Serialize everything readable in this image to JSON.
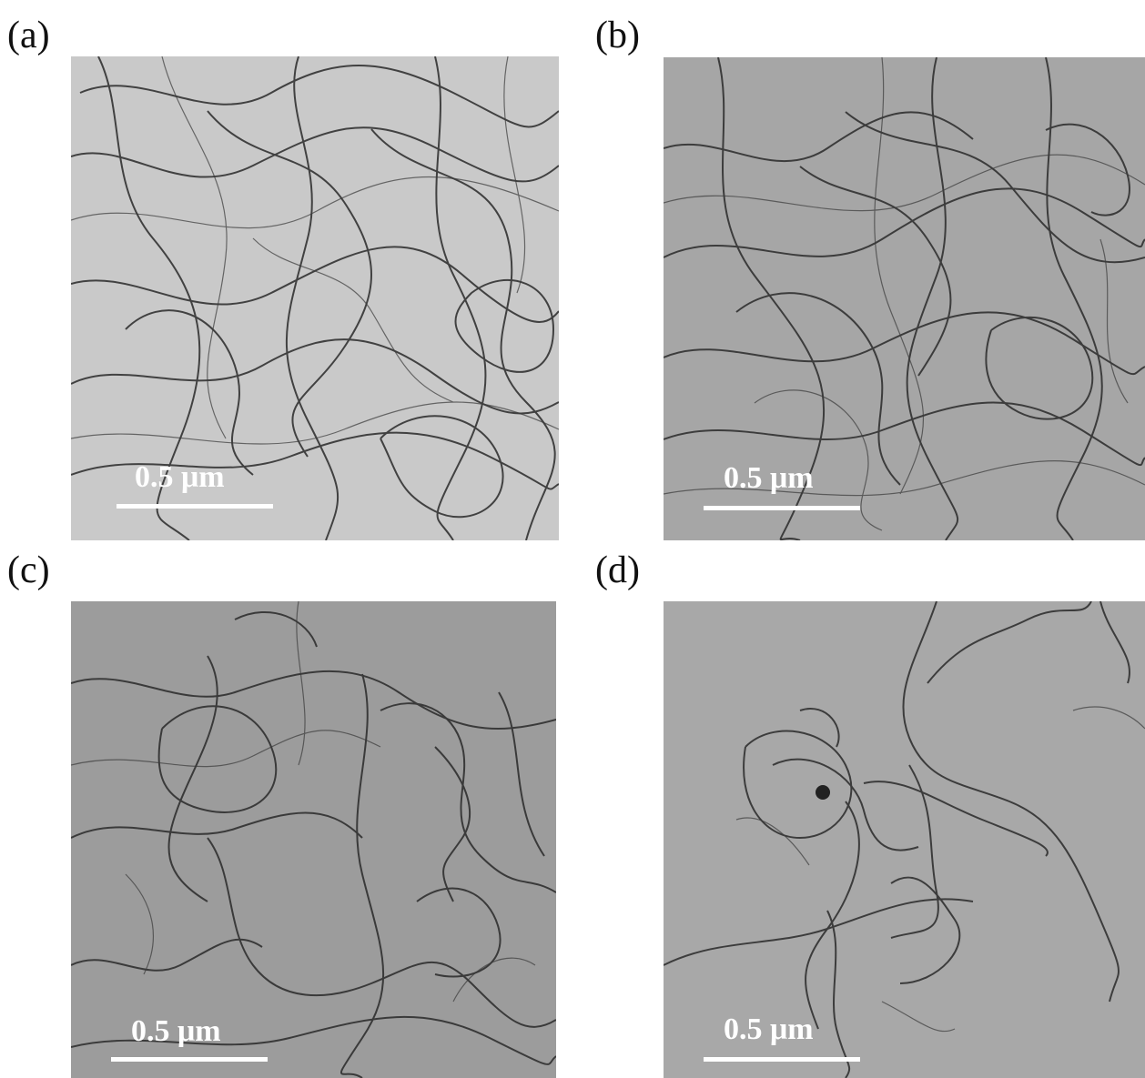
{
  "panels": [
    {
      "label": "(a)",
      "scale": "0.5 μm",
      "background": "#c9c9c9"
    },
    {
      "label": "(b)",
      "scale": "0.5 μm",
      "background": "#a6a6a6"
    },
    {
      "label": "(c)",
      "scale": "0.5 μm",
      "background": "#9c9c9c"
    },
    {
      "label": "(d)",
      "scale": "0.5 μm",
      "background": "#a8a8a8"
    }
  ],
  "content": "TEM micrographs of entangled fibrous nanotubes"
}
